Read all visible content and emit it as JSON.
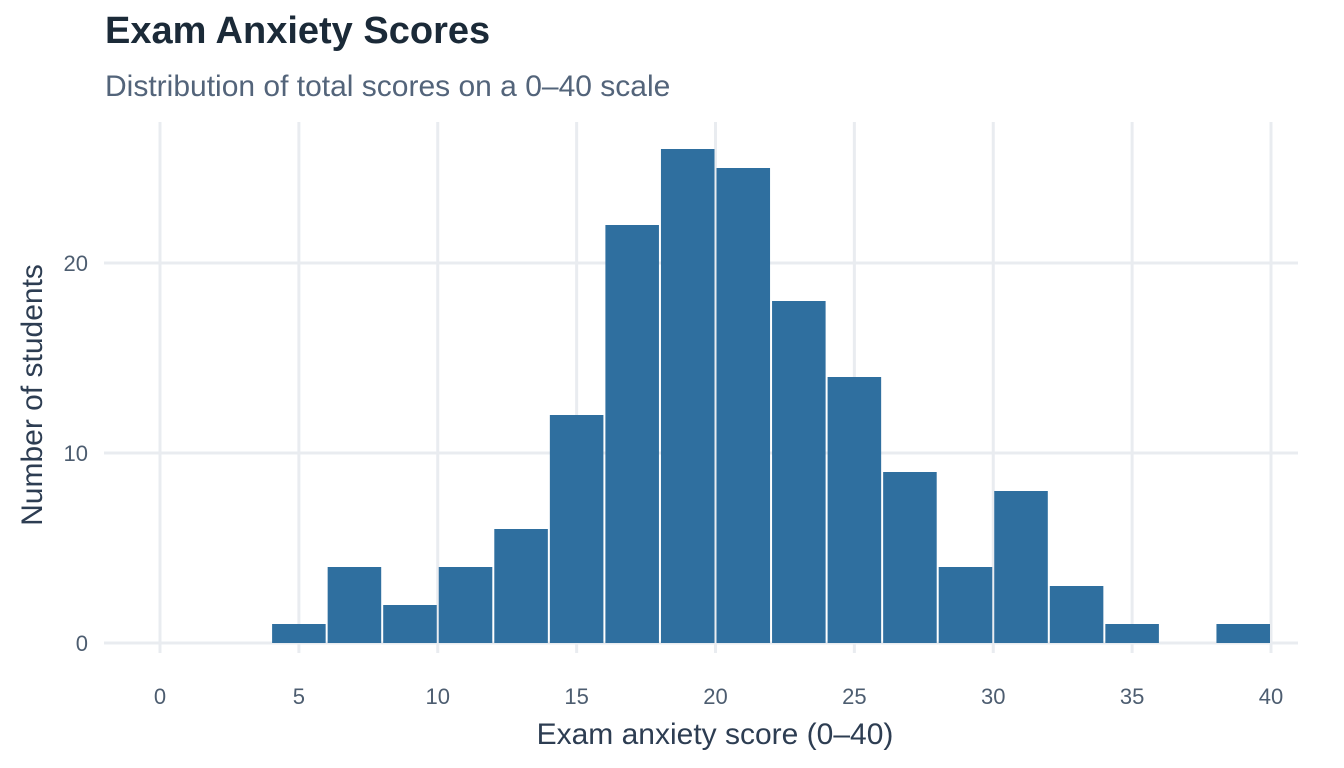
{
  "title": "Exam Anxiety Scores",
  "subtitle": "Distribution of total scores on a 0–40 scale",
  "colors": {
    "bar": "#2f6f9f",
    "grid": "#e9ecf0"
  },
  "chart_data": {
    "type": "bar",
    "title": "Exam Anxiety Scores",
    "subtitle": "Distribution of total scores on a 0–40 scale",
    "xlabel": "Exam anxiety score (0–40)",
    "ylabel": "Number of students",
    "xlim": [
      0,
      40
    ],
    "ylim": [
      0,
      26
    ],
    "x_ticks": [
      0,
      5,
      10,
      15,
      20,
      25,
      30,
      35,
      40
    ],
    "y_ticks": [
      0,
      10,
      20
    ],
    "grid": true,
    "bins": [
      {
        "start": 4,
        "end": 6,
        "count": 1
      },
      {
        "start": 6,
        "end": 8,
        "count": 4
      },
      {
        "start": 8,
        "end": 10,
        "count": 2
      },
      {
        "start": 10,
        "end": 12,
        "count": 4
      },
      {
        "start": 12,
        "end": 14,
        "count": 6
      },
      {
        "start": 14,
        "end": 16,
        "count": 12
      },
      {
        "start": 16,
        "end": 18,
        "count": 22
      },
      {
        "start": 18,
        "end": 20,
        "count": 26
      },
      {
        "start": 20,
        "end": 22,
        "count": 25
      },
      {
        "start": 22,
        "end": 24,
        "count": 18
      },
      {
        "start": 24,
        "end": 26,
        "count": 14
      },
      {
        "start": 26,
        "end": 28,
        "count": 9
      },
      {
        "start": 28,
        "end": 30,
        "count": 4
      },
      {
        "start": 30,
        "end": 32,
        "count": 8
      },
      {
        "start": 32,
        "end": 34,
        "count": 3
      },
      {
        "start": 34,
        "end": 36,
        "count": 1
      },
      {
        "start": 38,
        "end": 40,
        "count": 1
      }
    ]
  }
}
